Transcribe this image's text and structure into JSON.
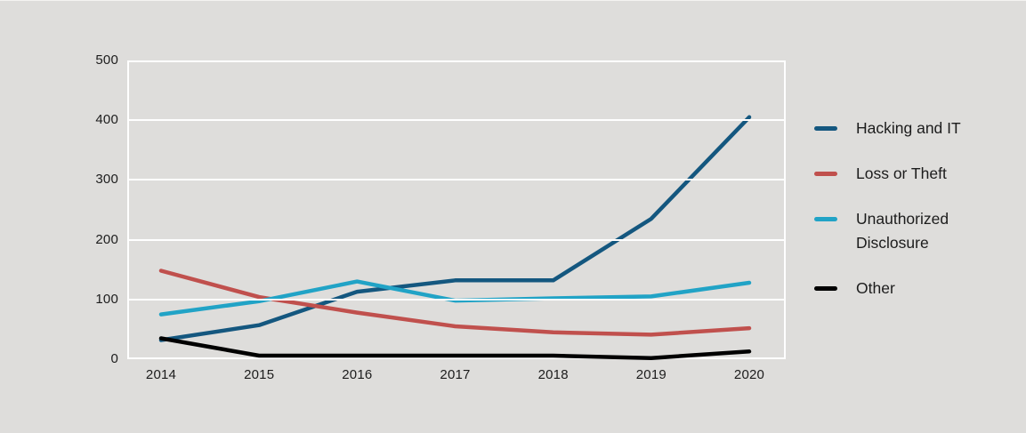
{
  "chart_data": {
    "type": "line",
    "categories": [
      "2014",
      "2015",
      "2016",
      "2017",
      "2018",
      "2019",
      "2020"
    ],
    "series": [
      {
        "name": "Hacking and IT",
        "color": "#14577f",
        "values": [
          32,
          57,
          113,
          132,
          132,
          235,
          405
        ]
      },
      {
        "name": "Loss or Theft",
        "color": "#c0504d",
        "values": [
          148,
          104,
          78,
          55,
          45,
          41,
          52
        ]
      },
      {
        "name": "Unauthorized Disclosure",
        "color": "#21a3c6",
        "values": [
          75,
          97,
          130,
          98,
          102,
          105,
          128
        ]
      },
      {
        "name": "Other",
        "color": "#000000",
        "values": [
          35,
          6,
          6,
          6,
          6,
          2,
          13
        ]
      }
    ],
    "title": "",
    "xlabel": "",
    "ylabel": "",
    "ylim": [
      0,
      500
    ],
    "yticks": [
      "0",
      "100",
      "200",
      "300",
      "400",
      "500"
    ],
    "grid": true,
    "gridline_color": "#ffffff",
    "legend_position": "right",
    "background_color": "#dedddb",
    "text_color": "#1c1c1c"
  }
}
